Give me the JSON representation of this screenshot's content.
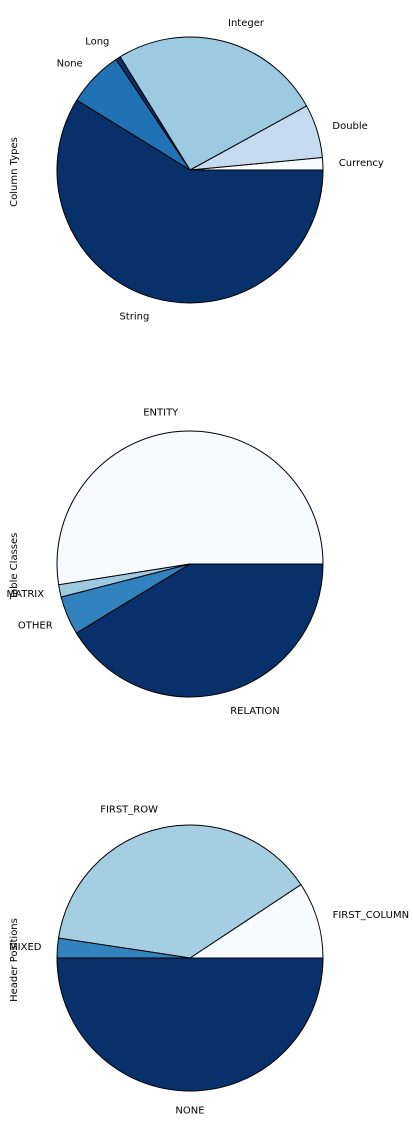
{
  "chart_data": [
    {
      "type": "pie",
      "ylabel": "Column Types",
      "categories": [
        "Currency",
        "Double",
        "Integer",
        "Long",
        "None",
        "String"
      ],
      "values": [
        1.5,
        6.5,
        25.8,
        0.6,
        6.8,
        58.8
      ],
      "colors": [
        "#f7fbff",
        "#c6dbef",
        "#9ecae1",
        "#08306b",
        "#2171b5",
        "#08306b"
      ]
    },
    {
      "type": "pie",
      "ylabel": "Table Classes",
      "categories": [
        "ENTITY",
        "MATRIX",
        "OTHER",
        "RELATION"
      ],
      "values": [
        52.5,
        1.5,
        4.7,
        41.3
      ],
      "colors": [
        "#f7fbff",
        "#9ecae1",
        "#3182bd",
        "#08306b"
      ]
    },
    {
      "type": "pie",
      "ylabel": "Header Positions",
      "categories": [
        "FIRST_COLUMN",
        "FIRST_ROW",
        "MIXED",
        "NONE"
      ],
      "values": [
        9.3,
        38.3,
        2.4,
        50.0
      ],
      "colors": [
        "#f7fbff",
        "#a6cee3",
        "#3182bd",
        "#08306b"
      ]
    }
  ]
}
